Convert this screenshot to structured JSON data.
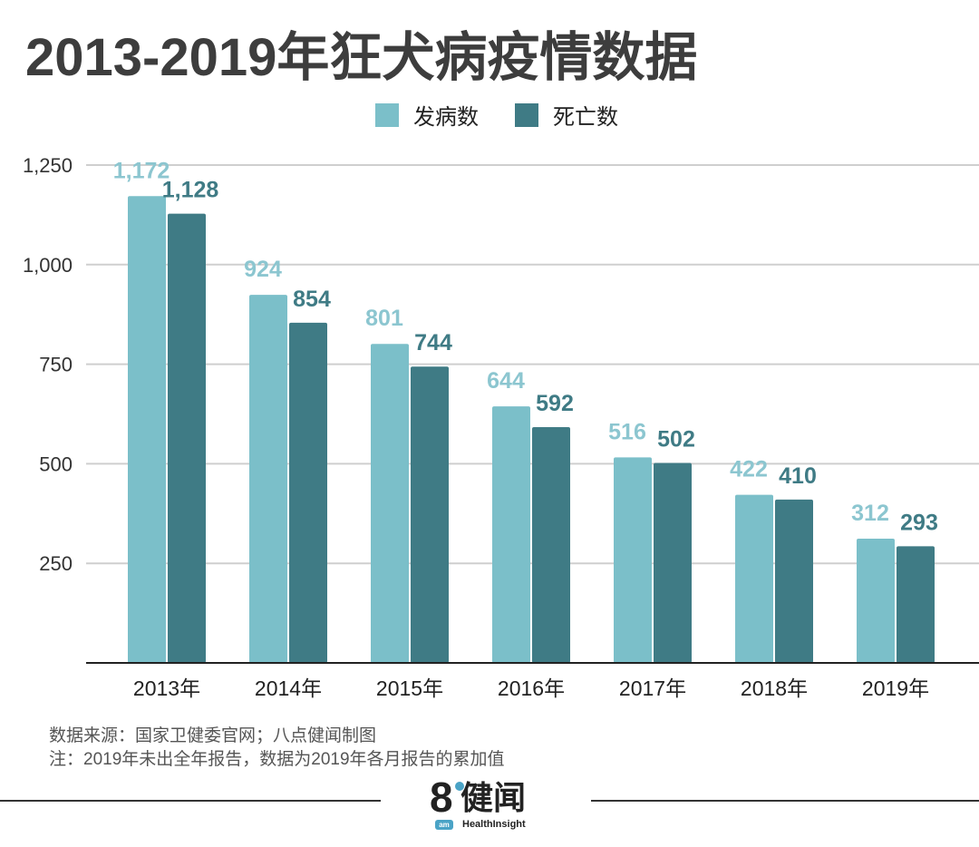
{
  "title": "2013-2019年狂犬病疫情数据",
  "chart_data": {
    "type": "bar",
    "title": "2013-2019年狂犬病疫情数据",
    "categories": [
      "2013年",
      "2014年",
      "2015年",
      "2016年",
      "2017年",
      "2018年",
      "2019年"
    ],
    "series": [
      {
        "name": "发病数",
        "color": "#7bbfc9",
        "label_color": "#8cc6d0",
        "values": [
          1172,
          924,
          801,
          644,
          516,
          422,
          312
        ],
        "labels": [
          "1,172",
          "924",
          "801",
          "644",
          "516",
          "422",
          "312"
        ]
      },
      {
        "name": "死亡数",
        "color": "#3f7b85",
        "label_color": "#3f7b85",
        "values": [
          1128,
          854,
          744,
          592,
          502,
          410,
          293
        ],
        "labels": [
          "1,128",
          "854",
          "744",
          "592",
          "502",
          "410",
          "293"
        ]
      }
    ],
    "yticks": [
      250,
      500,
      750,
      1000,
      1250
    ],
    "ytick_labels": [
      "250",
      "500",
      "750",
      "1,000",
      "1,250"
    ],
    "ylim": [
      0,
      1250
    ],
    "xlabel": "",
    "ylabel": "",
    "legend": "top-center",
    "grid": true
  },
  "footer": {
    "source": "数据来源：国家卫健委官网；八点健闻制图",
    "note": "注：2019年未出全年报告，数据为2019年各月报告的累加值"
  },
  "logo": {
    "mark": "8",
    "sub": "am",
    "name_cn": "健闻",
    "name_en": "HealthInsight"
  }
}
